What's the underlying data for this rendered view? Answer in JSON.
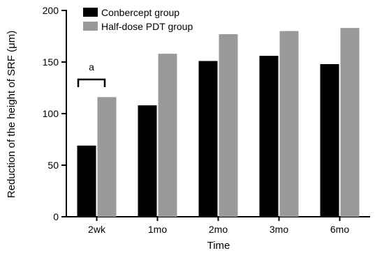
{
  "chart_data": {
    "type": "bar",
    "categories": [
      "2wk",
      "1mo",
      "2mo",
      "3mo",
      "6mo"
    ],
    "series": [
      {
        "name": "Conbercept group",
        "color": "#000000",
        "values": [
          69,
          108,
          151,
          156,
          148
        ]
      },
      {
        "name": "Half-dose PDT group",
        "color": "#999999",
        "values": [
          116,
          158,
          177,
          180,
          183
        ]
      }
    ],
    "title": "",
    "xlabel": "Time",
    "ylabel": "Reduction of the height of SRF (μm)",
    "ylim": [
      0,
      200
    ],
    "yticks": [
      0,
      50,
      100,
      150,
      200
    ],
    "grid": false,
    "legend_position": "top-left",
    "annotations": [
      {
        "text": "a",
        "category": "2wk",
        "type": "significance-bracket"
      }
    ]
  }
}
